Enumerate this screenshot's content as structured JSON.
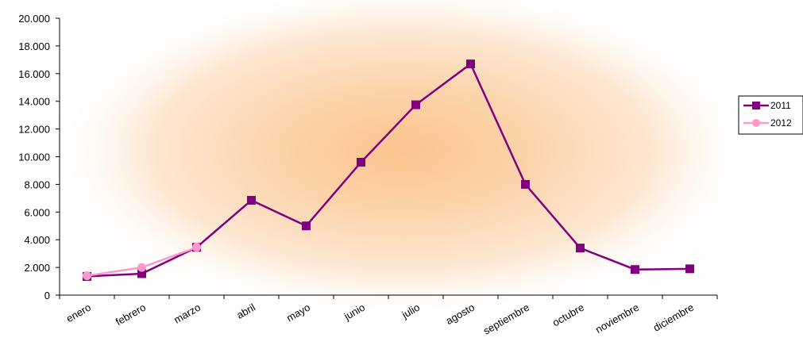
{
  "chart_data": {
    "type": "line",
    "title": "",
    "xlabel": "",
    "ylabel": "",
    "categories": [
      "enero",
      "febrero",
      "marzo",
      "abril",
      "mayo",
      "junio",
      "julio",
      "agosto",
      "septiembre",
      "octubre",
      "noviembre",
      "diciembre"
    ],
    "ylim": [
      0,
      20000
    ],
    "y_ticks": [
      "0",
      "2.000",
      "4.000",
      "6.000",
      "8.000",
      "10.000",
      "12.000",
      "14.000",
      "16.000",
      "18.000",
      "20.000"
    ],
    "grid": false,
    "legend_position": "right",
    "series": [
      {
        "name": "2011",
        "color": "#800080",
        "marker": "square",
        "values": [
          1350,
          1550,
          3450,
          6850,
          5000,
          9600,
          13750,
          16700,
          8000,
          3400,
          1850,
          1900
        ]
      },
      {
        "name": "2012",
        "color": "#ff99cc",
        "marker": "circle",
        "values": [
          1400,
          2000,
          3450,
          null,
          null,
          null,
          null,
          null,
          null,
          null,
          null,
          null
        ]
      }
    ]
  }
}
